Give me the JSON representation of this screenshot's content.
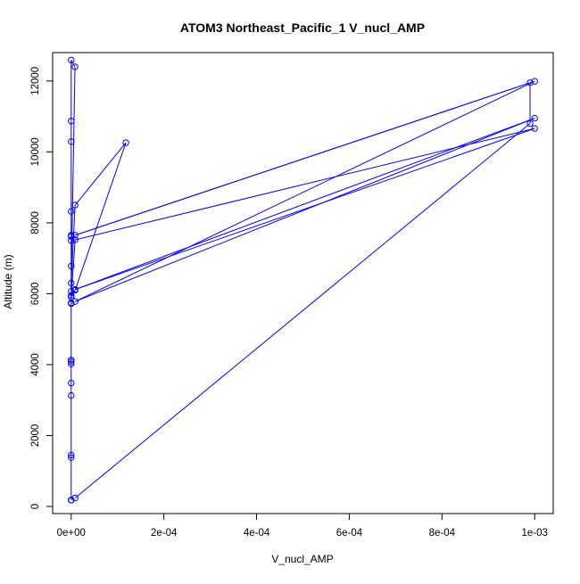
{
  "chart_data": {
    "type": "scatter",
    "title": "ATOM3 Northeast_Pacific_1 V_nucl_AMP",
    "xlabel": "V_nucl_AMP",
    "ylabel": "Altitude (m)",
    "xlim": [
      -4e-05,
      0.00104
    ],
    "ylim": [
      -200,
      12800
    ],
    "xticks": [
      0,
      0.0002,
      0.0004,
      0.0006,
      0.0008,
      0.001
    ],
    "xtick_labels": [
      "0e+00",
      "2e-04",
      "4e-04",
      "6e-04",
      "8e-04",
      "1e-03"
    ],
    "yticks": [
      0,
      2000,
      4000,
      6000,
      8000,
      10000,
      12000
    ],
    "ytick_labels": [
      "0",
      "2000",
      "4000",
      "6000",
      "8000",
      "10000",
      "12000"
    ],
    "grid": false,
    "legend": "none",
    "series": [
      {
        "color": "#0000ff",
        "marker": "open-circle",
        "line": true,
        "points": [
          {
            "x": 0,
            "y": 180
          },
          {
            "x": 0,
            "y": 180
          },
          {
            "x": 0,
            "y": 180
          },
          {
            "x": 0,
            "y": 1380
          },
          {
            "x": 0,
            "y": 1450
          },
          {
            "x": 0,
            "y": 3130
          },
          {
            "x": 0,
            "y": 3480
          },
          {
            "x": 0,
            "y": 4020
          },
          {
            "x": 0,
            "y": 4080
          },
          {
            "x": 0,
            "y": 4130
          },
          {
            "x": 0,
            "y": 5720
          },
          {
            "x": 0,
            "y": 5740
          },
          {
            "x": 0,
            "y": 5950
          },
          {
            "x": 0,
            "y": 6070
          },
          {
            "x": 0,
            "y": 6780
          },
          {
            "x": 0,
            "y": 7500
          },
          {
            "x": 0,
            "y": 7620
          },
          {
            "x": 0,
            "y": 7650
          },
          {
            "x": 0,
            "y": 8320
          },
          {
            "x": 0,
            "y": 10290
          },
          {
            "x": 0,
            "y": 10870
          },
          {
            "x": 0,
            "y": 12590
          },
          {
            "x": 8.2e-06,
            "y": 12400
          },
          {
            "x": 0,
            "y": 6300
          },
          {
            "x": 8.5e-06,
            "y": 8500
          },
          {
            "x": 0.000118,
            "y": 10260
          },
          {
            "x": 8.5e-06,
            "y": 6100
          },
          {
            "x": 0,
            "y": 5900
          },
          {
            "x": 8.5e-06,
            "y": 7520
          },
          {
            "x": 0.001,
            "y": 10660
          },
          {
            "x": 8.5e-06,
            "y": 6120
          },
          {
            "x": 0.001,
            "y": 10950
          },
          {
            "x": 8.5e-06,
            "y": 5780
          },
          {
            "x": 0.001,
            "y": 11990
          },
          {
            "x": 8.5e-06,
            "y": 7650
          },
          {
            "x": 0.00099,
            "y": 11950
          },
          {
            "x": 0.00099,
            "y": 10800
          },
          {
            "x": 8.5e-06,
            "y": 240
          }
        ]
      }
    ]
  }
}
